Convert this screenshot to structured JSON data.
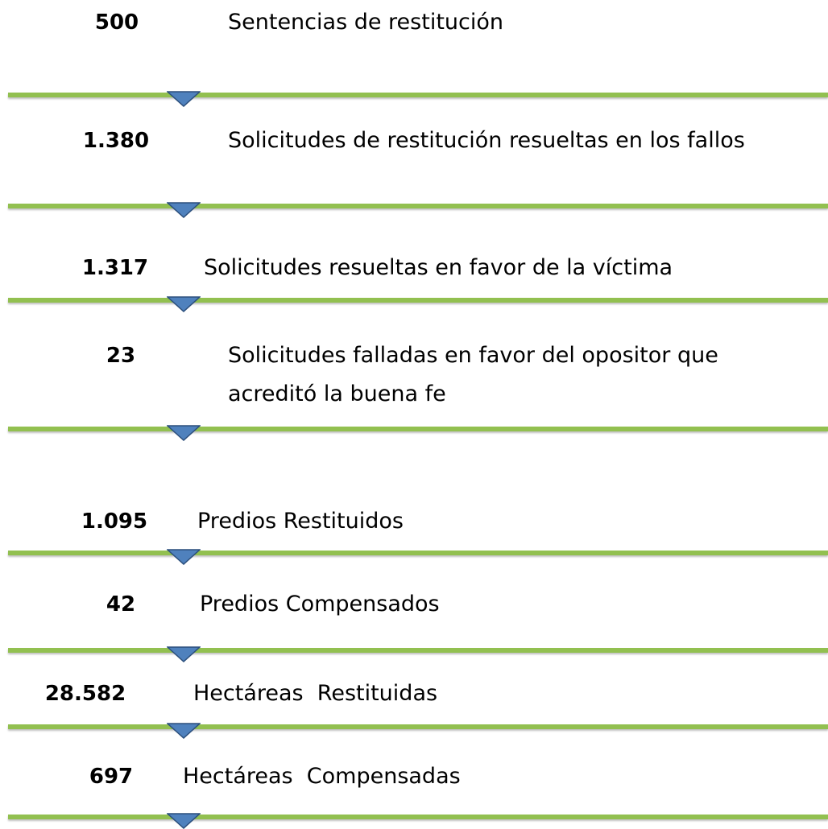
{
  "items": [
    {
      "value": "500",
      "label": "Sentencias de restitución"
    },
    {
      "value": "1.380",
      "label": "Solicitudes de restitución resueltas en los fallos"
    },
    {
      "value": "1.317",
      "label": "Solicitudes resueltas en favor de la víctima"
    },
    {
      "value": "23",
      "label": "Solicitudes falladas en favor del opositor que\nacreditó la buena fe"
    },
    {
      "value": "1.095",
      "label": "Predios Restituidos"
    },
    {
      "value": "42",
      "label": "Predios Compensados"
    },
    {
      "value": "28.582",
      "label": "Hectáreas  Restituidas"
    },
    {
      "value": "697",
      "label": "Hectáreas  Compensadas"
    }
  ]
}
